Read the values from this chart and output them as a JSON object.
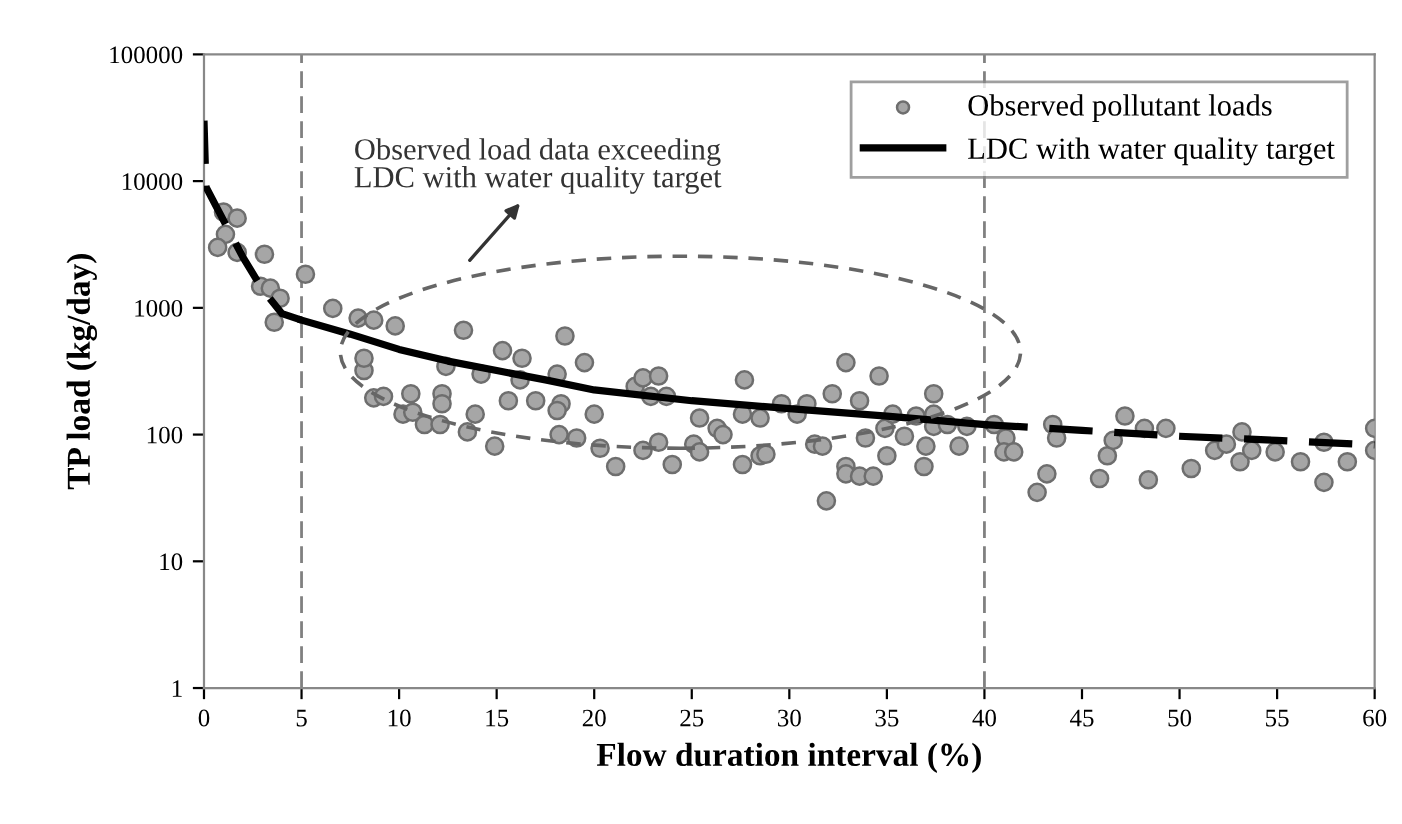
{
  "chart_data": {
    "type": "scatter",
    "xlabel": "Flow duration interval (%)",
    "ylabel": "TP load (kg/day)",
    "annotations": [
      "Observed load data exceeding\nLDC with water quality target"
    ],
    "log": "y",
    "xlim": [
      0,
      60
    ],
    "xticks": [
      0,
      5,
      10,
      15,
      20,
      25,
      30,
      35,
      40,
      45,
      50,
      55,
      60
    ],
    "ylim": [
      1,
      100000
    ],
    "yticks": [
      1,
      10,
      100,
      1000,
      10000,
      100000
    ],
    "grid": false,
    "legend": "top right",
    "ref_lines": [
      {
        "axis": "x",
        "value": 5,
        "color": "#808080",
        "line_style": "dashed"
      },
      {
        "axis": "x",
        "value": 40,
        "color": "#808080",
        "line_style": "dashed"
      }
    ],
    "series": [
      {
        "name": "Observed pollutant loads",
        "marker": "circle",
        "color": "#a6a6a6",
        "x": [
          1.0,
          1.7,
          1.1,
          0.7,
          1.7,
          3.1,
          2.9,
          3.4,
          3.9,
          3.6,
          5.2,
          6.6,
          7.9,
          8.7,
          9.8,
          8.2,
          8.2,
          8.7,
          9.2,
          10.6,
          10.2,
          10.7,
          11.3,
          12.1,
          12.2,
          12.2,
          13.3,
          12.4,
          13.5,
          13.9,
          14.9,
          14.2,
          15.3,
          15.6,
          16.3,
          16.2,
          17.0,
          18.1,
          18.3,
          18.1,
          18.2,
          18.5,
          19.1,
          19.5,
          20.0,
          20.3,
          21.1,
          22.1,
          22.5,
          23.3,
          22.9,
          23.7,
          22.5,
          23.3,
          24.0,
          25.4,
          25.1,
          25.4,
          26.3,
          26.6,
          27.7,
          27.6,
          28.5,
          27.6,
          28.5,
          28.8,
          29.6,
          30.4,
          30.9,
          31.3,
          31.7,
          32.2,
          32.9,
          32.9,
          32.9,
          33.6,
          33.6,
          34.3,
          33.9,
          34.6,
          34.9,
          35.0,
          31.9,
          35.3,
          35.9,
          36.5,
          37.0,
          36.9,
          37.4,
          37.4,
          37.4,
          38.1,
          38.7,
          39.1,
          40.5,
          41.1,
          41.0,
          41.5,
          42.7,
          43.2,
          43.5,
          43.7,
          45.9,
          46.3,
          46.6,
          47.2,
          48.2,
          48.4,
          49.3,
          50.6,
          51.8,
          52.4,
          53.1,
          53.2,
          53.7,
          54.9,
          56.2,
          57.4,
          57.4,
          58.6,
          60.0,
          60.0
        ],
        "values": [
          5700,
          5100,
          3800,
          3000,
          2740,
          2650,
          1480,
          1430,
          1190,
          770,
          1840,
          990,
          830,
          800,
          720,
          320,
          400,
          195,
          200,
          210,
          145,
          150,
          120,
          120,
          210,
          175,
          665,
          345,
          105,
          145,
          81,
          300,
          460,
          185,
          400,
          270,
          185,
          300,
          175,
          155,
          100,
          600,
          94,
          370,
          145,
          78,
          56,
          240,
          280,
          290,
          200,
          200,
          75,
          87,
          58,
          135,
          84,
          73,
          112,
          100,
          270,
          145,
          135,
          58,
          68,
          70,
          175,
          145,
          175,
          84,
          81,
          210,
          370,
          56,
          49,
          185,
          47,
          47,
          94,
          290,
          112,
          68,
          30,
          145,
          97,
          140,
          81,
          56,
          210,
          145,
          116,
          120,
          81,
          116,
          120,
          94,
          73,
          73,
          35,
          49,
          120,
          94,
          45,
          68,
          90,
          140,
          112,
          44,
          112,
          54,
          75,
          84,
          61,
          105,
          75,
          73,
          61,
          87,
          42,
          61,
          75,
          112
        ]
      },
      {
        "name": "LDC with water quality target",
        "type": "line",
        "marker": "none",
        "line_style": "solid",
        "color": "#000000",
        "x": [
          5,
          7.5,
          10,
          12.5,
          15,
          17.5,
          20,
          25,
          30,
          35,
          40
        ],
        "values": [
          800,
          620,
          470,
          380,
          320,
          270,
          225,
          185,
          160,
          140,
          120
        ]
      },
      {
        "type": "line",
        "marker": "none",
        "line_style": "dashed",
        "color": "#000000",
        "x": [
          0,
          0.1,
          1,
          2,
          3,
          4,
          5
        ],
        "values": [
          30000,
          9000,
          4900,
          2500,
          1400,
          900,
          800
        ]
      },
      {
        "type": "line",
        "marker": "none",
        "line_style": "dashed",
        "color": "#000000",
        "x": [
          40,
          45,
          50,
          55,
          60
        ],
        "values": [
          120,
          108,
          97,
          90,
          83
        ]
      }
    ]
  }
}
